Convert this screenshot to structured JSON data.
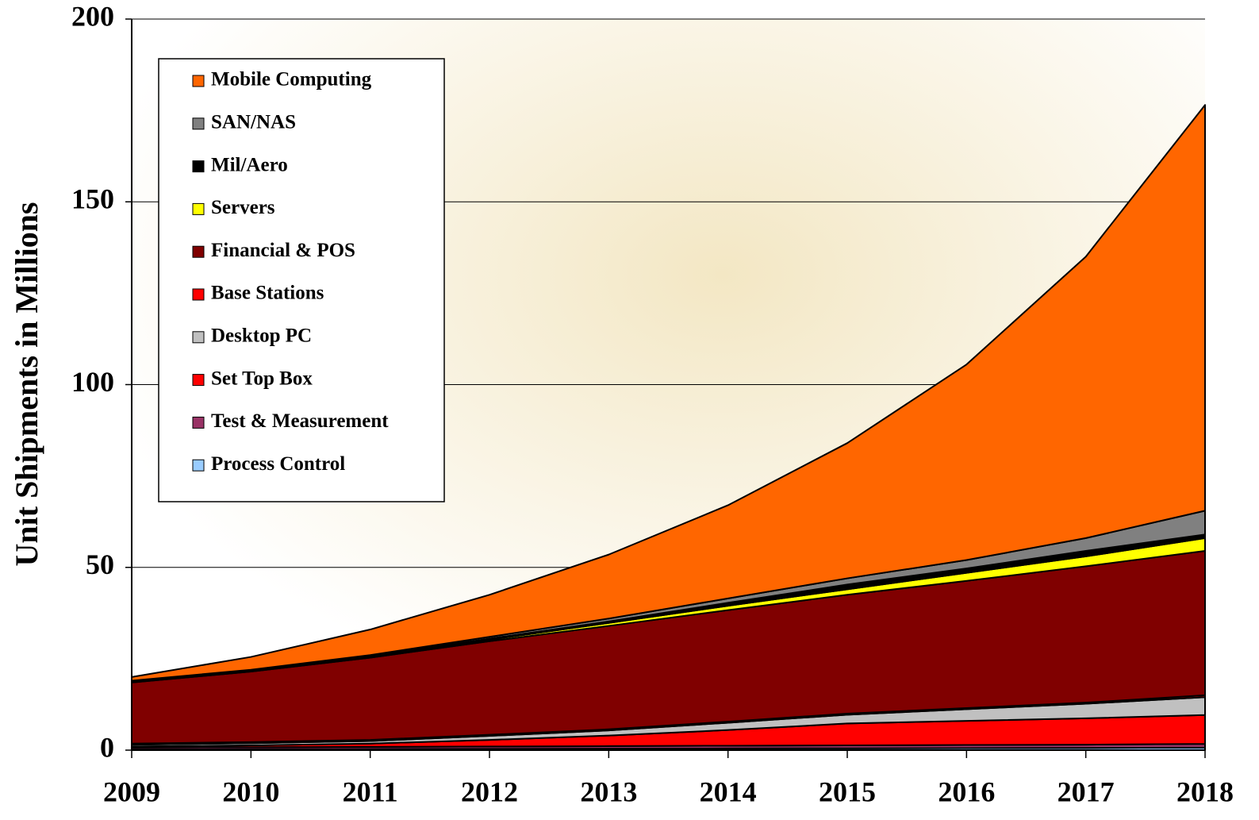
{
  "chart_data": {
    "type": "stacked-area",
    "y_label": "Unit Shipments in Millions",
    "x": [
      2009,
      2010,
      2011,
      2012,
      2013,
      2014,
      2015,
      2016,
      2017,
      2018
    ],
    "xlim": [
      2009,
      2018
    ],
    "xticks": [
      2009,
      2010,
      2011,
      2012,
      2013,
      2014,
      2015,
      2016,
      2017,
      2018
    ],
    "ylim": [
      0,
      200
    ],
    "yticks": [
      0,
      50,
      100,
      150,
      200
    ],
    "grid": true,
    "legend": "upper left",
    "series": [
      {
        "name": "Process Control",
        "color": "#99ccff",
        "values": [
          0.2,
          0.25,
          0.3,
          0.35,
          0.4,
          0.45,
          0.5,
          0.55,
          0.6,
          0.7
        ]
      },
      {
        "name": "Test & Measurement",
        "color": "#993366",
        "values": [
          0.5,
          0.55,
          0.6,
          0.65,
          0.7,
          0.75,
          0.8,
          0.85,
          0.9,
          1.0
        ]
      },
      {
        "name": "Set Top Box",
        "color": "#ff0000",
        "values": [
          0.3,
          0.5,
          0.9,
          1.8,
          2.9,
          4.3,
          6.0,
          6.6,
          7.2,
          7.9
        ]
      },
      {
        "name": "Desktop PC",
        "color": "#c0c0c0",
        "values": [
          0.5,
          0.6,
          0.7,
          1.1,
          1.4,
          2.0,
          2.4,
          3.2,
          4.0,
          4.9
        ]
      },
      {
        "name": "Base Stations",
        "color": "#ff0000",
        "values": [
          0.3,
          0.3,
          0.3,
          0.3,
          0.3,
          0.3,
          0.3,
          0.3,
          0.3,
          0.5
        ]
      },
      {
        "name": "Financial & POS",
        "color": "#800000",
        "values": [
          16.7,
          19.3,
          22.5,
          25.6,
          28.3,
          30.5,
          32.5,
          34.8,
          37.3,
          39.5
        ]
      },
      {
        "name": "Servers",
        "color": "#ffff00",
        "values": [
          0.1,
          0.1,
          0.2,
          0.4,
          0.8,
          1.2,
          1.5,
          2.2,
          2.7,
          3.5
        ]
      },
      {
        "name": "Mil/Aero",
        "color": "#000000",
        "values": [
          0.2,
          0.2,
          0.2,
          0.3,
          0.4,
          0.8,
          1.3,
          1.2,
          1.5,
          1.0
        ]
      },
      {
        "name": "SAN/NAS",
        "color": "#808080",
        "values": [
          0.2,
          0.2,
          0.3,
          0.5,
          0.8,
          1.2,
          1.7,
          2.3,
          3.5,
          6.5
        ]
      },
      {
        "name": "Mobile Computing",
        "color": "#ff6600",
        "values": [
          1,
          3.5,
          7,
          11.5,
          17.5,
          25.5,
          37,
          53.5,
          77,
          111
        ]
      }
    ]
  }
}
